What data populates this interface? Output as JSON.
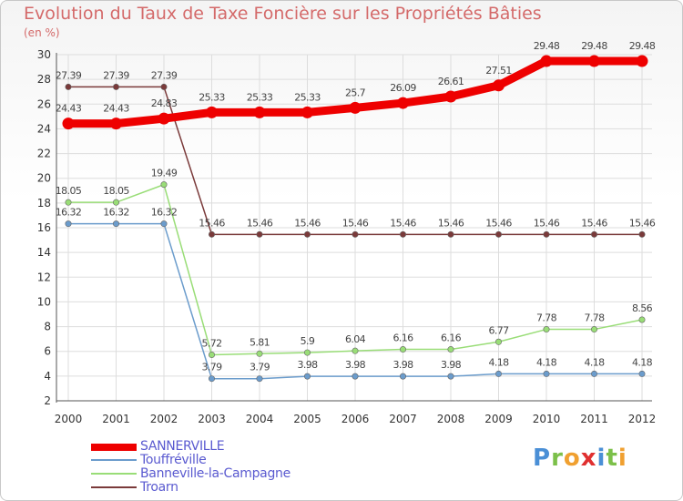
{
  "title": "Evolution du Taux de Taxe Foncière sur les Propriétés Bâties",
  "unit": "(en %)",
  "logo": "Proxiti",
  "chart_data": {
    "type": "line",
    "x": [
      "2000",
      "2001",
      "2002",
      "2003",
      "2004",
      "2005",
      "2006",
      "2007",
      "2008",
      "2009",
      "2010",
      "2011",
      "2012"
    ],
    "ylim": [
      2,
      30
    ],
    "yticks": [
      2,
      4,
      6,
      8,
      10,
      12,
      14,
      16,
      18,
      20,
      22,
      24,
      26,
      28,
      30
    ],
    "grid": true,
    "series": [
      {
        "name": "SANNERVILLE",
        "color": "#ee0000",
        "values": [
          24.43,
          24.43,
          24.83,
          25.33,
          25.33,
          25.33,
          25.7,
          26.09,
          26.61,
          27.51,
          29.48,
          29.48,
          29.48
        ],
        "labels": [
          "24.43",
          "24.43",
          "24.83",
          "25.33",
          "25.33",
          "25.33",
          "25.7",
          "26.09",
          "26.61",
          "27.51",
          "29.48",
          "29.48",
          "29.48"
        ]
      },
      {
        "name": "Touffréville",
        "color": "#6b9ccc",
        "values": [
          16.32,
          16.32,
          16.32,
          3.79,
          3.79,
          3.98,
          3.98,
          3.98,
          3.98,
          4.18,
          4.18,
          4.18,
          4.18
        ],
        "labels": [
          "16.32",
          "16.32",
          "16.32",
          "3.79",
          "3.79",
          "3.98",
          "3.98",
          "3.98",
          "3.98",
          "4.18",
          "4.18",
          "4.18",
          "4.18"
        ]
      },
      {
        "name": "Banneville-la-Campagne",
        "color": "#99dd77",
        "values": [
          18.05,
          18.05,
          19.49,
          5.72,
          5.81,
          5.9,
          6.04,
          6.16,
          6.16,
          6.77,
          7.78,
          7.78,
          8.56
        ],
        "labels": [
          "18.05",
          "18.05",
          "19.49",
          "5.72",
          "5.81",
          "5.9",
          "6.04",
          "6.16",
          "6.16",
          "6.77",
          "7.78",
          "7.78",
          "8.56"
        ]
      },
      {
        "name": "Troarn",
        "color": "#7a3a3a",
        "values": [
          27.39,
          27.39,
          27.39,
          15.46,
          15.46,
          15.46,
          15.46,
          15.46,
          15.46,
          15.46,
          15.46,
          15.46,
          15.46
        ],
        "labels": [
          "27.39",
          "27.39",
          "27.39",
          "15.46",
          "15.46",
          "15.46",
          "15.46",
          "15.46",
          "15.46",
          "15.46",
          "15.46",
          "15.46",
          "15.46"
        ]
      }
    ]
  }
}
